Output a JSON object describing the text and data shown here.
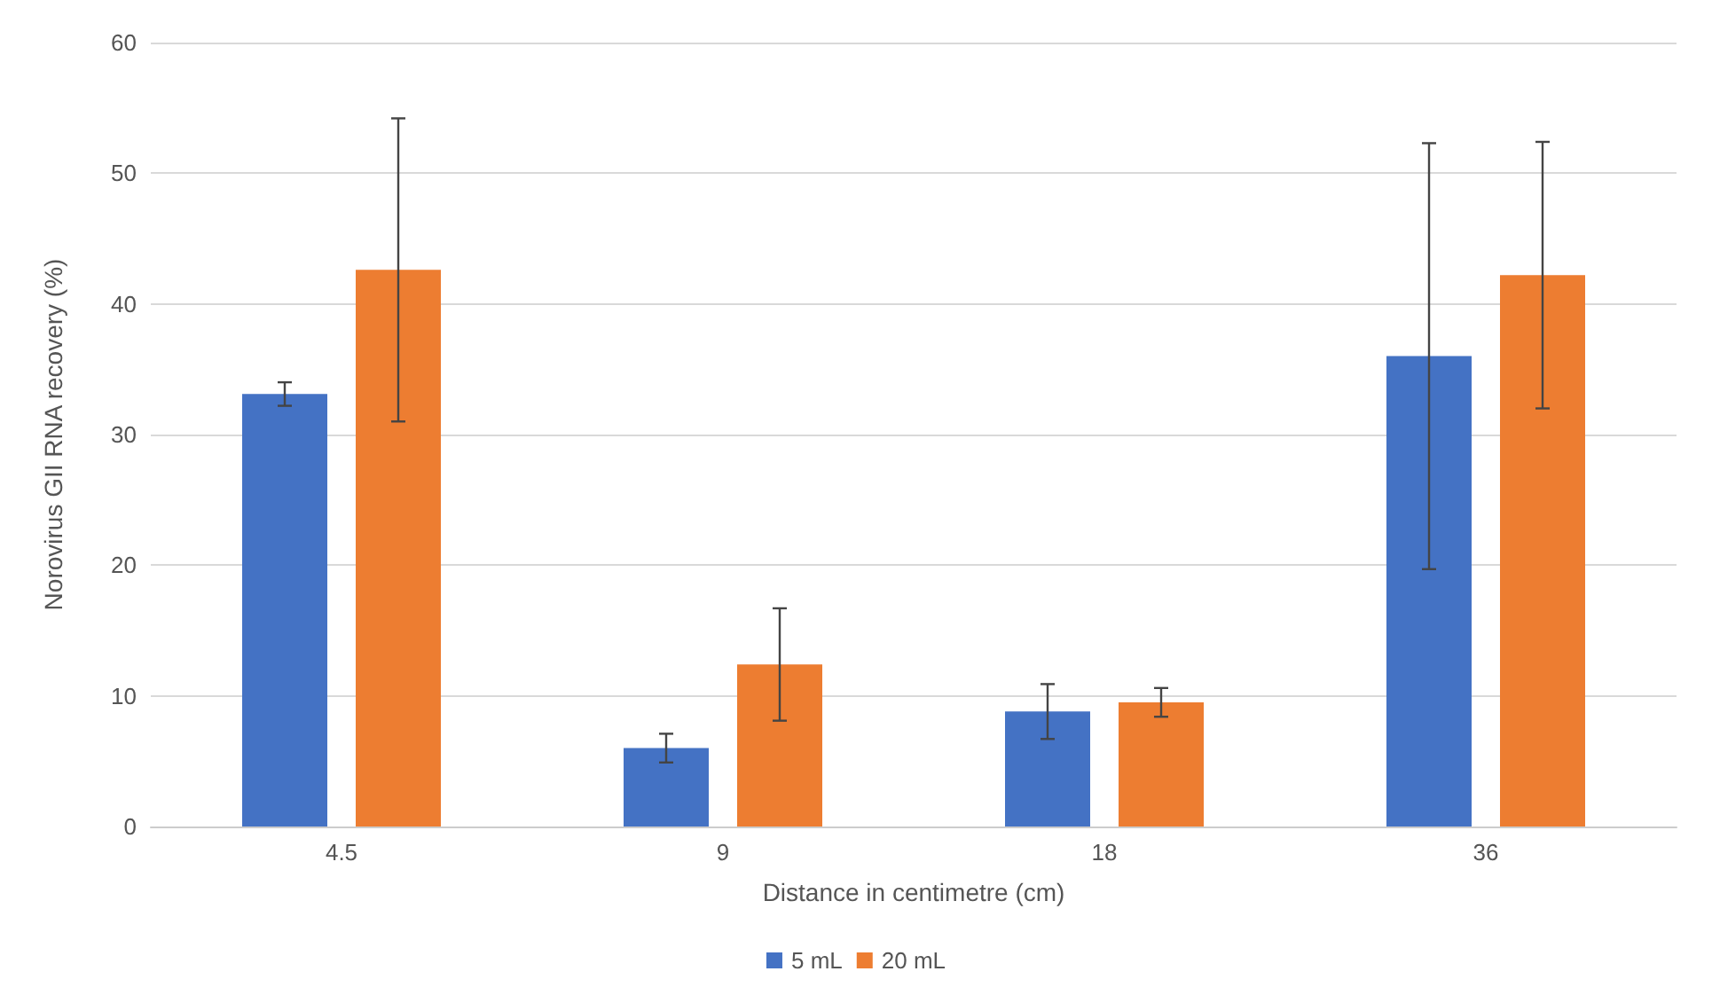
{
  "chart_data": {
    "type": "bar",
    "xlabel": "Distance in centimetre (cm)",
    "ylabel": "Norovirus GII RNA recovery (%)",
    "categories": [
      "4.5",
      "9",
      "18",
      "36"
    ],
    "series": [
      {
        "name": "5 mL",
        "color": "#4472c4",
        "values": [
          33.1,
          6.0,
          8.8,
          36.0
        ],
        "errors": [
          0.9,
          1.1,
          2.1,
          16.3
        ]
      },
      {
        "name": "20 mL",
        "color": "#ed7d31",
        "values": [
          42.6,
          12.4,
          9.5,
          42.2
        ],
        "errors": [
          11.6,
          4.3,
          1.1,
          10.2
        ]
      }
    ],
    "ylim": [
      0,
      60
    ],
    "yticks": [
      0,
      10,
      20,
      30,
      40,
      50,
      60
    ],
    "grid": "y",
    "legend": "bottom"
  }
}
